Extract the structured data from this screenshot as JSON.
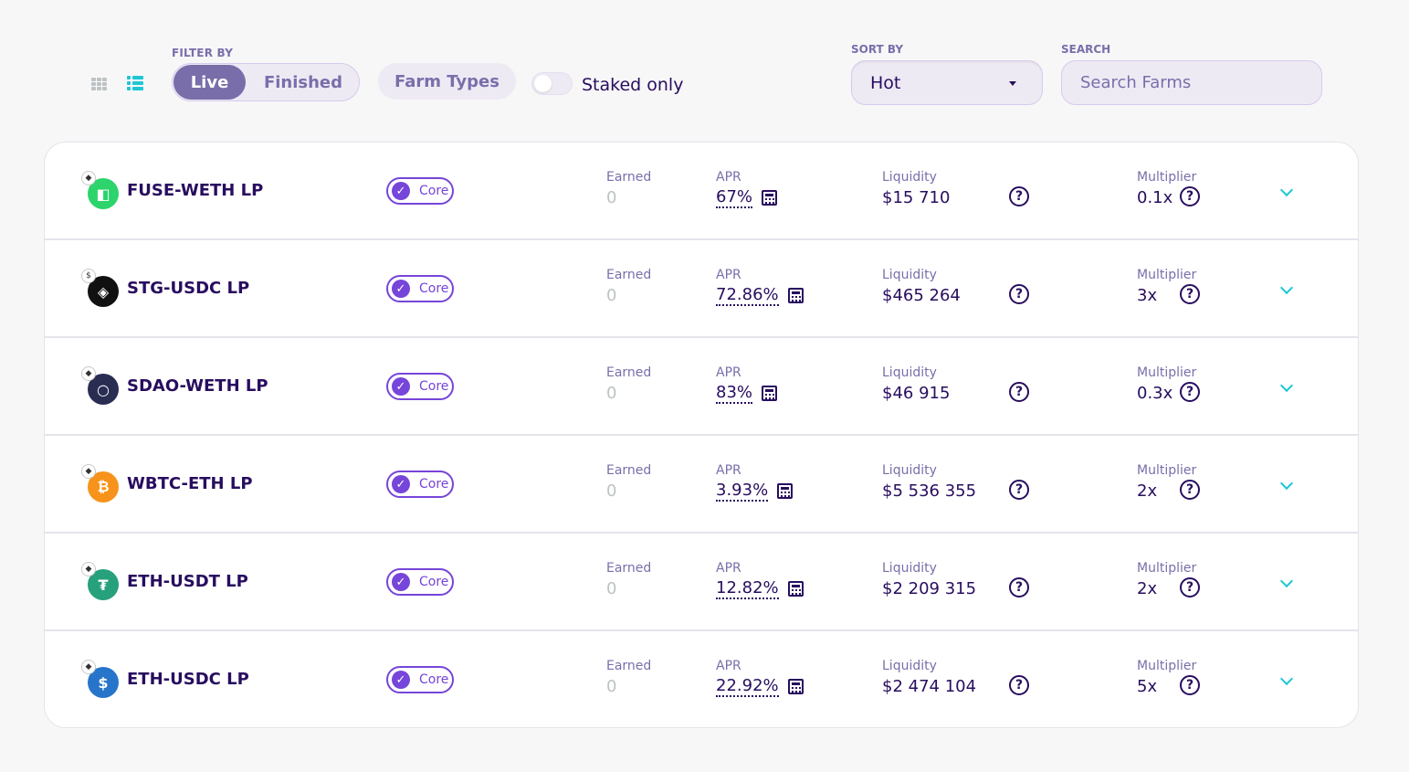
{
  "filter": {
    "label": "FILTER BY",
    "live": "Live",
    "finished": "Finished",
    "farm_types": "Farm Types",
    "staked_only": "Staked only"
  },
  "sort": {
    "label": "SORT BY",
    "value": "Hot"
  },
  "search": {
    "label": "SEARCH",
    "placeholder": "Search Farms"
  },
  "columns": {
    "earned": "Earned",
    "apr": "APR",
    "liquidity": "Liquidity",
    "multiplier": "Multiplier"
  },
  "tag": "Core",
  "farms": [
    {
      "pair": "FUSE-WETH LP",
      "earned": "0",
      "apr": "67%",
      "liquidity": "$15 710",
      "multiplier": "0.1x",
      "icon": "fuse-token-icon",
      "color": "#2cd46b",
      "glyph": "◧",
      "mini": "eth-mini-icon",
      "mini_glyph": "◆"
    },
    {
      "pair": "STG-USDC LP",
      "earned": "0",
      "apr": "72.86%",
      "liquidity": "$465 264",
      "multiplier": "3x",
      "icon": "stg-token-icon",
      "color": "#111111",
      "glyph": "◈",
      "mini": "usdc-mini-icon",
      "mini_glyph": "$"
    },
    {
      "pair": "SDAO-WETH LP",
      "earned": "0",
      "apr": "83%",
      "liquidity": "$46 915",
      "multiplier": "0.3x",
      "icon": "sdao-token-icon",
      "color": "#2a2d52",
      "glyph": "○",
      "mini": "eth-mini-icon",
      "mini_glyph": "◆"
    },
    {
      "pair": "WBTC-ETH LP",
      "earned": "0",
      "apr": "3.93%",
      "liquidity": "$5 536 355",
      "multiplier": "2x",
      "icon": "wbtc-token-icon",
      "color": "#f7931a",
      "glyph": "₿",
      "mini": "eth-mini-icon",
      "mini_glyph": "◆"
    },
    {
      "pair": "ETH-USDT LP",
      "earned": "0",
      "apr": "12.82%",
      "liquidity": "$2 209 315",
      "multiplier": "2x",
      "icon": "usdt-token-icon",
      "color": "#26a17b",
      "glyph": "₮",
      "mini": "eth-mini-icon",
      "mini_glyph": "◆"
    },
    {
      "pair": "ETH-USDC LP",
      "earned": "0",
      "apr": "22.92%",
      "liquidity": "$2 474 104",
      "multiplier": "5x",
      "icon": "usdc-token-icon",
      "color": "#2775ca",
      "glyph": "$",
      "mini": "eth-mini-icon",
      "mini_glyph": "◆"
    }
  ]
}
